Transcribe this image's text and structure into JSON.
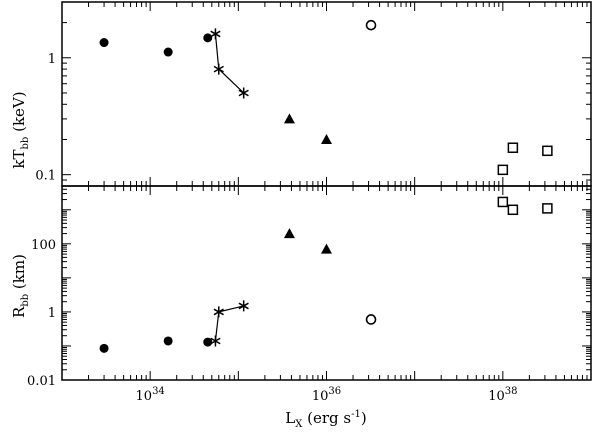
{
  "chart_data": [
    {
      "type": "scatter",
      "panel": "top",
      "ylabel": {
        "main": "kT",
        "sub": "bb",
        "unit": " (keV)"
      },
      "yscale": "log",
      "ylim": [
        0.08,
        3
      ],
      "yticks": [
        {
          "v": 0.1,
          "label": "0.1"
        },
        {
          "v": 1,
          "label": "1"
        }
      ],
      "series": [
        {
          "marker": "circle-filled",
          "points": [
            [
              3e+33,
              1.35
            ],
            [
              1.6e+34,
              1.12
            ],
            [
              4.5e+34,
              1.48
            ]
          ]
        },
        {
          "marker": "asterisk",
          "connected": true,
          "points": [
            [
              5.5e+34,
              1.6
            ],
            [
              6e+34,
              0.8
            ],
            [
              1.15e+35,
              0.5
            ]
          ]
        },
        {
          "marker": "triangle-filled",
          "points": [
            [
              3.8e+35,
              0.3
            ],
            [
              1e+36,
              0.2
            ]
          ]
        },
        {
          "marker": "circle-open",
          "points": [
            [
              3.2e+36,
              1.9
            ]
          ]
        },
        {
          "marker": "square-open",
          "points": [
            [
              1e+38,
              0.11
            ],
            [
              1.3e+38,
              0.17
            ],
            [
              3.2e+38,
              0.16
            ]
          ]
        }
      ]
    },
    {
      "type": "scatter",
      "panel": "bottom",
      "ylabel": {
        "main": "R",
        "sub": "bb",
        "unit": " (km)"
      },
      "yscale": "log",
      "ylim": [
        0.01,
        5000
      ],
      "yticks": [
        {
          "v": 0.01,
          "label": "0.01"
        },
        {
          "v": 1,
          "label": "1"
        },
        {
          "v": 100,
          "label": "100"
        }
      ],
      "series": [
        {
          "marker": "circle-filled",
          "points": [
            [
              3e+33,
              0.085
            ],
            [
              1.6e+34,
              0.14
            ],
            [
              4.5e+34,
              0.13
            ]
          ]
        },
        {
          "marker": "asterisk",
          "connected": true,
          "points": [
            [
              5.5e+34,
              0.14
            ],
            [
              6e+34,
              1.0
            ],
            [
              1.15e+35,
              1.5
            ]
          ]
        },
        {
          "marker": "triangle-filled",
          "points": [
            [
              3.8e+35,
              200
            ],
            [
              1e+36,
              70
            ]
          ]
        },
        {
          "marker": "circle-open",
          "points": [
            [
              3.2e+36,
              0.6
            ]
          ]
        },
        {
          "marker": "square-open",
          "points": [
            [
              1e+38,
              1700
            ],
            [
              1.3e+38,
              1000
            ],
            [
              3.2e+38,
              1100
            ]
          ]
        }
      ]
    }
  ],
  "x_axis": {
    "scale": "log",
    "xlim": [
      1e+33,
      1e+39
    ],
    "xticks": [
      {
        "v": 1e+34,
        "base": "10",
        "exp": "34"
      },
      {
        "v": 1e+36,
        "base": "10",
        "exp": "36"
      },
      {
        "v": 1e+38,
        "base": "10",
        "exp": "38"
      }
    ],
    "xlabel": {
      "main": "L",
      "sub": "X",
      "unit": " (erg s",
      "unit_sup": "-1",
      "unit_end": ")"
    }
  }
}
